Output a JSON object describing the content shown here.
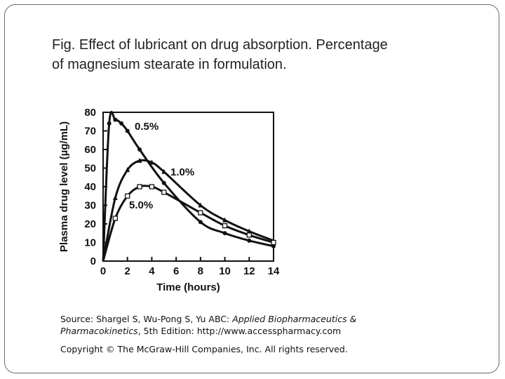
{
  "caption": {
    "line1": "Fig. Effect of lubricant on drug absorption. Percentage",
    "line2": "of magnesium stearate in formulation."
  },
  "source": {
    "prefix": "Source: Shargel S, Wu-Pong S, Yu ABC: ",
    "book_title_part1": "Applied Biopharmaceutics &",
    "book_title_part2": "Pharmacokinetics",
    "edition": ", 5th Edition: http://www.accesspharmacy.com",
    "copyright": "Copyright © The McGraw-Hill Companies, Inc. All rights reserved."
  },
  "chart_data": {
    "type": "line",
    "title": "",
    "xlabel": "Time (hours)",
    "ylabel": "Plasma drug level (µg/mL)",
    "xlim": [
      0,
      14
    ],
    "ylim": [
      0,
      80
    ],
    "xticks": [
      "0",
      "2",
      "4",
      "6",
      "8",
      "10",
      "12",
      "14"
    ],
    "yticks": [
      "0",
      "10",
      "20",
      "30",
      "40",
      "50",
      "60",
      "70",
      "80"
    ],
    "grid": false,
    "series": [
      {
        "name": "0.5%",
        "marker": "filled-circle",
        "x": [
          0,
          0.5,
          1,
          1.5,
          2,
          3,
          5,
          8,
          10,
          12,
          14
        ],
        "y": [
          0,
          74,
          76,
          74,
          70,
          60,
          42,
          21,
          15,
          11,
          8
        ]
      },
      {
        "name": "1.0%",
        "marker": "filled-triangle",
        "x": [
          0,
          1,
          2,
          3,
          4,
          5,
          8,
          10,
          12,
          14
        ],
        "y": [
          0,
          34,
          49,
          54,
          53,
          48,
          30,
          22,
          16,
          11
        ]
      },
      {
        "name": "5.0%",
        "marker": "open-square",
        "x": [
          0,
          1,
          2,
          3,
          4,
          5,
          8,
          10,
          12,
          14
        ],
        "y": [
          0,
          23,
          35,
          40,
          40,
          37,
          26,
          19,
          14,
          10
        ]
      }
    ]
  }
}
